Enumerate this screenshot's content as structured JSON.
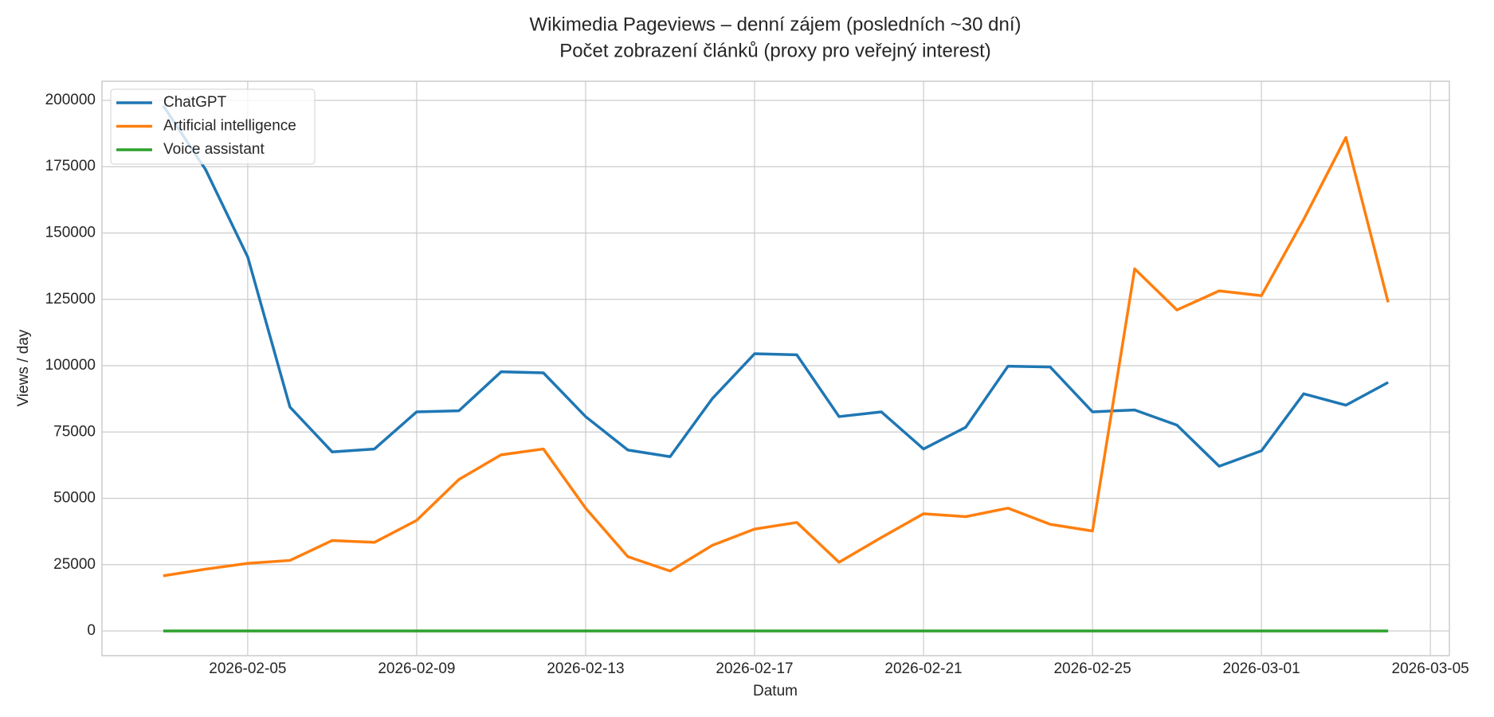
{
  "chart_data": {
    "type": "line",
    "title": "Wikimedia Pageviews – denní zájem (posledních ~30 dní)",
    "subtitle": "Počet zobrazení článků (proxy pro veřejný interest)",
    "x_label": "Datum",
    "y_label": "Views / day",
    "x": [
      "2026-02-03",
      "2026-02-04",
      "2026-02-05",
      "2026-02-06",
      "2026-02-07",
      "2026-02-08",
      "2026-02-09",
      "2026-02-10",
      "2026-02-11",
      "2026-02-12",
      "2026-02-13",
      "2026-02-14",
      "2026-02-15",
      "2026-02-16",
      "2026-02-17",
      "2026-02-18",
      "2026-02-19",
      "2026-02-20",
      "2026-02-21",
      "2026-02-22",
      "2026-02-23",
      "2026-02-24",
      "2026-02-25",
      "2026-02-26",
      "2026-02-27",
      "2026-02-28",
      "2026-03-01",
      "2026-03-02",
      "2026-03-03",
      "2026-03-04"
    ],
    "series": [
      {
        "name": "ChatGPT",
        "color": "#1f77b4",
        "values": [
          198000,
          174000,
          141000,
          84400,
          67500,
          68600,
          82600,
          83000,
          97700,
          97300,
          80800,
          68200,
          65700,
          87600,
          104500,
          104100,
          80800,
          82600,
          68600,
          76800,
          99800,
          99500,
          82600,
          83300,
          77600,
          62100,
          67900,
          89400,
          85100,
          93700
        ]
      },
      {
        "name": "Artificial intelligence",
        "color": "#ff7f0e",
        "values": [
          20800,
          23300,
          25500,
          26600,
          34100,
          33400,
          41700,
          57100,
          66400,
          68600,
          46300,
          28000,
          22600,
          32300,
          38400,
          40900,
          25900,
          35200,
          44200,
          43100,
          46300,
          40200,
          37700,
          136500,
          121000,
          128200,
          126400,
          155100,
          186000,
          123900
        ]
      },
      {
        "name": "Voice assistant",
        "color": "#2ca02c",
        "values": [
          0,
          0,
          0,
          0,
          0,
          0,
          0,
          0,
          0,
          0,
          0,
          0,
          0,
          0,
          0,
          0,
          0,
          0,
          0,
          0,
          0,
          0,
          0,
          0,
          0,
          0,
          0,
          0,
          0,
          0
        ]
      }
    ],
    "xlim": [
      "2026-02-01T13:12",
      "2026-03-05T10:48"
    ],
    "xticks": [
      "2026-02-05",
      "2026-02-09",
      "2026-02-13",
      "2026-02-17",
      "2026-02-21",
      "2026-02-25",
      "2026-03-01",
      "2026-03-05"
    ],
    "ylim": [
      -9300,
      207200
    ],
    "yticks": [
      0,
      25000,
      50000,
      75000,
      100000,
      125000,
      150000,
      175000,
      200000
    ],
    "grid": true,
    "legend": "upper left"
  }
}
